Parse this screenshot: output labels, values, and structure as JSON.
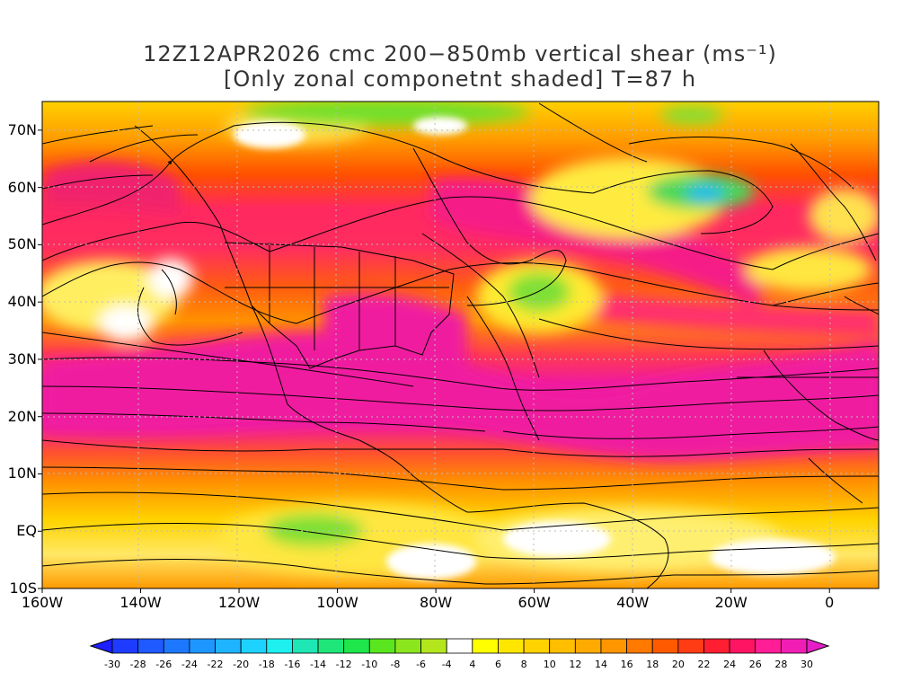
{
  "title": {
    "line1": "12Z12APR2026 cmc 200−850mb vertical shear (ms⁻¹)",
    "line2": "[Only zonal componetnt shaded] T=87 h"
  },
  "map": {
    "lon_range": [
      -160,
      10
    ],
    "lat_range": [
      -10,
      75
    ],
    "lat_labels": [
      {
        "lat": 70,
        "text": "70N"
      },
      {
        "lat": 60,
        "text": "60N"
      },
      {
        "lat": 50,
        "text": "50N"
      },
      {
        "lat": 40,
        "text": "40N"
      },
      {
        "lat": 30,
        "text": "30N"
      },
      {
        "lat": 20,
        "text": "20N"
      },
      {
        "lat": 10,
        "text": "10N"
      },
      {
        "lat": 0,
        "text": "EQ"
      },
      {
        "lat": -10,
        "text": "10S"
      }
    ],
    "lon_labels": [
      {
        "lon": -160,
        "text": "160W"
      },
      {
        "lon": -140,
        "text": "140W"
      },
      {
        "lon": -120,
        "text": "120W"
      },
      {
        "lon": -100,
        "text": "100W"
      },
      {
        "lon": -80,
        "text": "80W"
      },
      {
        "lon": -60,
        "text": "60W"
      },
      {
        "lon": -40,
        "text": "40W"
      },
      {
        "lon": -20,
        "text": "20W"
      },
      {
        "lon": 0,
        "text": "0"
      }
    ],
    "shaded_field": "zonal shear component",
    "shear_bands": [
      {
        "lat_center": 25,
        "level": "30",
        "color": "#f01aa0"
      },
      {
        "lat_center": 56,
        "level": "26",
        "color": "#f51a87"
      },
      {
        "lat_center": 8,
        "level": "16",
        "color": "#f46d16"
      },
      {
        "lat_center": 68,
        "level": "-4",
        "color": "#77e52d"
      }
    ]
  },
  "colorbar": {
    "levels": [
      "-30",
      "-28",
      "-26",
      "-24",
      "-22",
      "-20",
      "-18",
      "-16",
      "-14",
      "-12",
      "-10",
      "-8",
      "-6",
      "-4",
      "4",
      "6",
      "8",
      "10",
      "12",
      "14",
      "16",
      "18",
      "20",
      "22",
      "24",
      "26",
      "28",
      "30"
    ],
    "colors": [
      "#1e1eff",
      "#1e3cff",
      "#1e5aff",
      "#1e78ff",
      "#1e96ff",
      "#1eb4ff",
      "#1ed2ff",
      "#1ef0f0",
      "#1ee6b4",
      "#1ee678",
      "#1ee64b",
      "#5ae61e",
      "#8ce61e",
      "#b4e61e",
      "#ffffff",
      "#ffff00",
      "#ffe600",
      "#ffd200",
      "#ffbe00",
      "#ffaa00",
      "#ff9600",
      "#ff7800",
      "#ff5a00",
      "#ff3c14",
      "#ff1e32",
      "#ff1464",
      "#ff1e96",
      "#f01eb4",
      "#e61ec8"
    ]
  }
}
